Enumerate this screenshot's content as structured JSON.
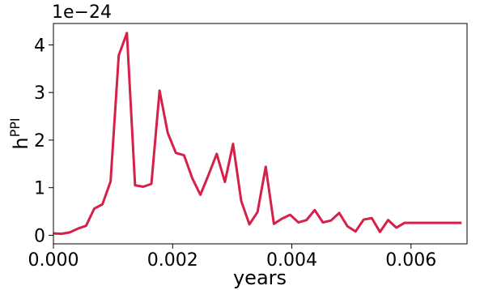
{
  "chart_data": {
    "type": "line",
    "xlabel": "years",
    "ylabel": "h",
    "ylabel_superscript": "PPI",
    "y_offset_text": "1e−24",
    "xlim": [
      0.0,
      0.00694
    ],
    "ylim": [
      -0.18,
      4.45
    ],
    "x_ticks": [
      0.0,
      0.002,
      0.004,
      0.006
    ],
    "x_tick_labels": [
      "0.000",
      "0.002",
      "0.004",
      "0.006"
    ],
    "y_ticks": [
      0,
      1,
      2,
      3,
      4
    ],
    "y_tick_labels": [
      "0",
      "1",
      "2",
      "3",
      "4"
    ],
    "grid": false,
    "line_color": "#d6204a",
    "series": [
      {
        "x": [
          0.0,
          0.000137,
          0.000274,
          0.000411,
          0.000548,
          0.000685,
          0.000822,
          0.000959,
          0.001096,
          0.001233,
          0.00137,
          0.001507,
          0.001644,
          0.001781,
          0.001918,
          0.002055,
          0.002192,
          0.002329,
          0.002466,
          0.002603,
          0.00274,
          0.002877,
          0.003014,
          0.003151,
          0.003288,
          0.003425,
          0.003562,
          0.003699,
          0.003836,
          0.003973,
          0.00411,
          0.004247,
          0.004384,
          0.004521,
          0.004658,
          0.004795,
          0.004932,
          0.005069,
          0.005206,
          0.005342,
          0.005479,
          0.005616,
          0.005753,
          0.00589,
          0.006027,
          0.006164,
          0.006301,
          0.006438,
          0.006575,
          0.006712,
          0.006849
        ],
        "values": [
          0.04,
          0.03,
          0.06,
          0.14,
          0.2,
          0.56,
          0.65,
          1.13,
          3.78,
          4.25,
          1.05,
          1.02,
          1.08,
          3.04,
          2.15,
          1.73,
          1.68,
          1.2,
          0.85,
          1.27,
          1.71,
          1.12,
          1.92,
          0.72,
          0.23,
          0.49,
          1.44,
          0.24,
          0.35,
          0.43,
          0.27,
          0.32,
          0.53,
          0.27,
          0.31,
          0.47,
          0.19,
          0.08,
          0.33,
          0.36,
          0.07,
          0.32,
          0.16,
          0.26,
          0.26,
          0.26,
          0.26,
          0.26,
          0.26,
          0.26,
          0.26
        ]
      }
    ]
  }
}
